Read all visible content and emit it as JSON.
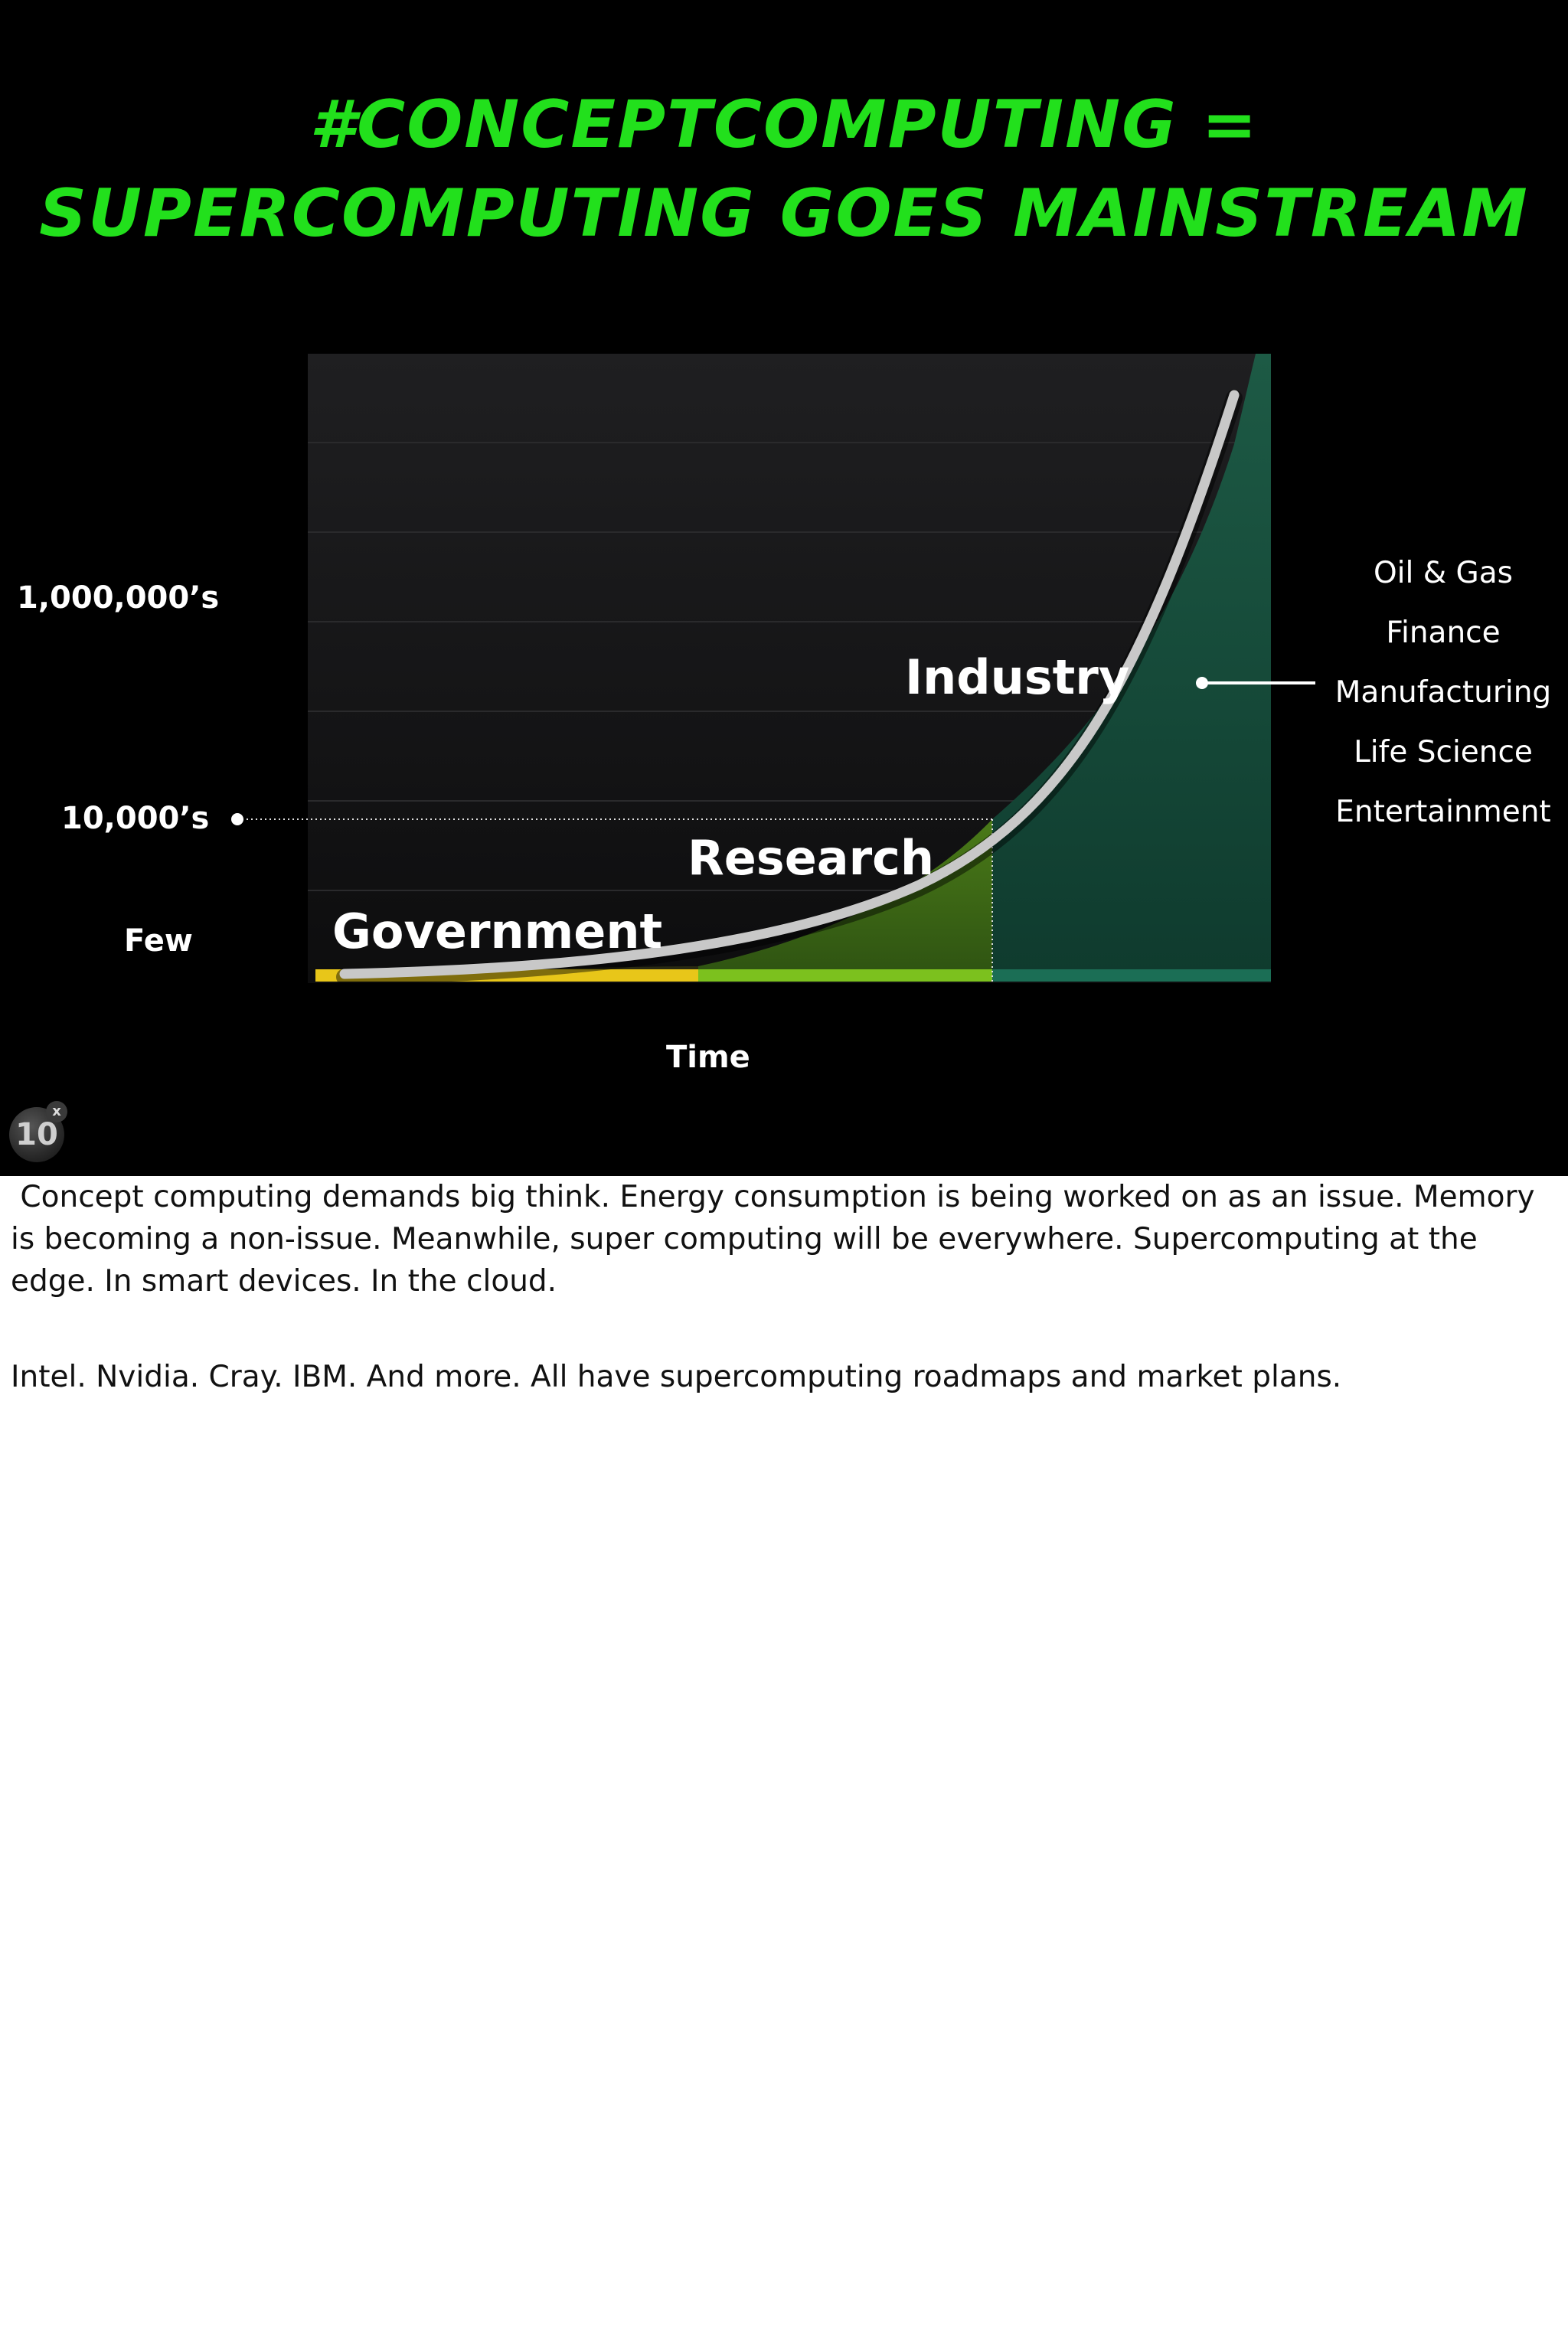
{
  "title": {
    "line1": "#ConceptComputing =",
    "line2": "Supercomputing goes mainstream"
  },
  "chart": {
    "y_labels": [
      "1,000,000’s",
      "10,000’s",
      "Few"
    ],
    "x_label": "Time",
    "zones": [
      {
        "label": "Government",
        "color": "#e8c619"
      },
      {
        "label": "Research",
        "color": "#7cc11e"
      },
      {
        "label": "Industry",
        "color": "#1b6e55"
      }
    ],
    "industries": [
      "Oil & Gas",
      "Finance",
      "Manufacturing",
      "Life Science",
      "Entertainment"
    ]
  },
  "chart_data": {
    "type": "area",
    "x_label": "Time",
    "y_tick_labels": [
      "Few",
      "10,000’s",
      "1,000,000’s"
    ],
    "series": [
      {
        "name": "Government"
      },
      {
        "name": "Research"
      },
      {
        "name": "Industry"
      }
    ],
    "annotations": [
      "Oil & Gas",
      "Finance",
      "Manufacturing",
      "Life Science",
      "Entertainment"
    ],
    "grid": true
  },
  "badge": {
    "number": "10",
    "superscript": "x"
  },
  "notes": {
    "paragraph1": "Concept computing demands big think. Energy consumption is being worked on as an issue. Memory is becoming a non-issue. Meanwhile, super computing will be everywhere. Supercomputing at the edge. In smart devices. In the cloud.",
    "paragraph2": "Intel. Nvidia. Cray. IBM. And more. All have supercomputing roadmaps and market plans."
  },
  "colors": {
    "title": "#22e01c",
    "curve": "#c8c8c8",
    "plot_bg": "#1b1b1d"
  }
}
